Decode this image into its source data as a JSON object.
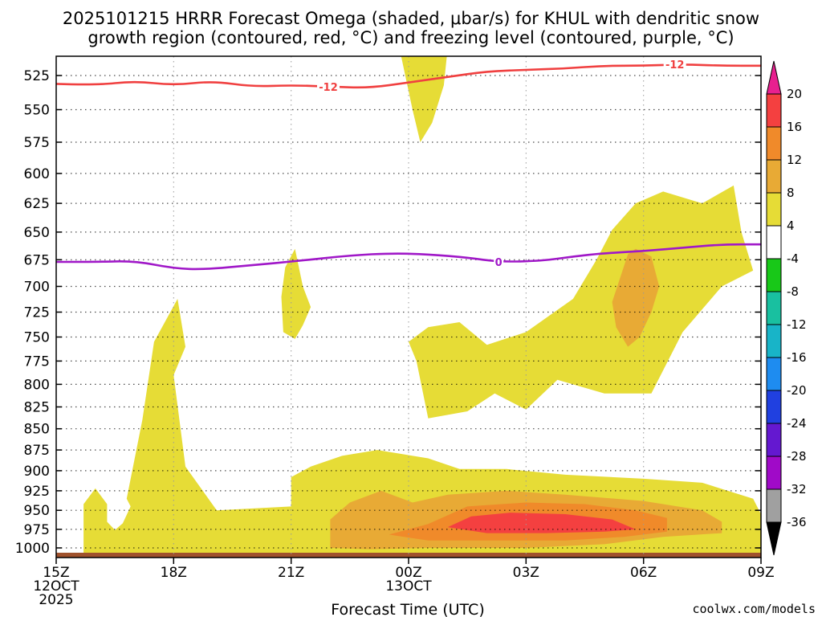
{
  "chart_data": {
    "type": "contour",
    "title_lines": [
      "2025101215 HRRR Forecast Omega (shaded, μbar/s) for KHUL with dendritic snow",
      "growth region (contoured, red, °C) and freezing level (contoured, purple, °C)"
    ],
    "xlabel": "Forecast Time (UTC)",
    "ylabel": "",
    "x_ticks": [
      {
        "hour": 0,
        "lines": [
          "15Z",
          "12OCT",
          "2025"
        ]
      },
      {
        "hour": 3,
        "lines": [
          "18Z"
        ]
      },
      {
        "hour": 6,
        "lines": [
          "21Z"
        ]
      },
      {
        "hour": 9,
        "lines": [
          "00Z",
          "13OCT"
        ]
      },
      {
        "hour": 12,
        "lines": [
          "03Z"
        ]
      },
      {
        "hour": 15,
        "lines": [
          "06Z"
        ]
      },
      {
        "hour": 18,
        "lines": [
          "09Z"
        ]
      }
    ],
    "xlim": [
      0,
      18
    ],
    "ylim": [
      1010,
      505
    ],
    "y_ticks": [
      525,
      550,
      575,
      600,
      625,
      650,
      675,
      700,
      725,
      750,
      775,
      800,
      825,
      850,
      875,
      900,
      925,
      950,
      975,
      1000
    ],
    "y_unit": "hPa",
    "grid": true,
    "colorbar": {
      "labels": [
        "20",
        "16",
        "12",
        "8",
        "4",
        "-4",
        "-8",
        "-12",
        "-16",
        "-20",
        "-24",
        "-28",
        "-32",
        "-36"
      ],
      "bins": [
        {
          "from": 20,
          "to": 24,
          "color": "#e8208f"
        },
        {
          "from": 16,
          "to": 20,
          "color": "#f44040"
        },
        {
          "from": 12,
          "to": 16,
          "color": "#f08a2a"
        },
        {
          "from": 8,
          "to": 12,
          "color": "#e8aa35"
        },
        {
          "from": 4,
          "to": 8,
          "color": "#e6dc36"
        },
        {
          "from": -4,
          "to": 4,
          "color": "#ffffff"
        },
        {
          "from": -8,
          "to": -4,
          "color": "#18c818"
        },
        {
          "from": -12,
          "to": -8,
          "color": "#19c0a0"
        },
        {
          "from": -16,
          "to": -12,
          "color": "#18b4c8"
        },
        {
          "from": -20,
          "to": -16,
          "color": "#1e8cf0"
        },
        {
          "from": -24,
          "to": -20,
          "color": "#2040e0"
        },
        {
          "from": -28,
          "to": -24,
          "color": "#6418d0"
        },
        {
          "from": -32,
          "to": -28,
          "color": "#a00ac8"
        },
        {
          "from": -36,
          "to": -32,
          "color": "#a0a0a0"
        },
        {
          "from": -40,
          "to": -36,
          "color": "#000000"
        }
      ]
    },
    "shaded_regions": [
      {
        "level": 4,
        "color": "#e6dc36",
        "points": [
          [
            0.7,
            1010
          ],
          [
            0.7,
            942
          ],
          [
            1.0,
            922
          ],
          [
            1.3,
            942
          ],
          [
            1.3,
            965
          ],
          [
            1.5,
            976
          ],
          [
            1.7,
            967
          ],
          [
            1.9,
            945
          ],
          [
            1.8,
            935
          ],
          [
            2.2,
            840
          ],
          [
            2.5,
            755
          ],
          [
            3.1,
            712
          ],
          [
            3.3,
            760
          ],
          [
            3.0,
            790
          ],
          [
            3.3,
            895
          ],
          [
            4.1,
            950
          ],
          [
            6.0,
            945
          ],
          [
            6.0,
            908
          ],
          [
            6.5,
            895
          ],
          [
            7.3,
            882
          ],
          [
            8.2,
            875
          ],
          [
            9.5,
            885
          ],
          [
            10.3,
            898
          ],
          [
            11.5,
            898
          ],
          [
            13.0,
            905
          ],
          [
            15.0,
            910
          ],
          [
            16.5,
            915
          ],
          [
            17.8,
            935
          ],
          [
            18,
            955
          ],
          [
            18,
            1010
          ]
        ]
      },
      {
        "level": 4,
        "color": "#e6dc36",
        "points": [
          [
            9.0,
            755
          ],
          [
            9.5,
            740
          ],
          [
            10.3,
            735
          ],
          [
            11.0,
            758
          ],
          [
            12.0,
            745
          ],
          [
            13.2,
            712
          ],
          [
            13.8,
            675
          ],
          [
            14.2,
            648
          ],
          [
            14.8,
            625
          ],
          [
            15.5,
            615
          ],
          [
            16.5,
            625
          ],
          [
            17.3,
            610
          ],
          [
            17.5,
            650
          ],
          [
            17.8,
            685
          ],
          [
            17.0,
            700
          ],
          [
            16.0,
            745
          ],
          [
            15.2,
            810
          ],
          [
            14.0,
            810
          ],
          [
            12.8,
            795
          ],
          [
            12.0,
            828
          ],
          [
            11.2,
            810
          ],
          [
            10.5,
            830
          ],
          [
            9.5,
            838
          ],
          [
            9.2,
            775
          ]
        ]
      },
      {
        "level": 4,
        "color": "#e6dc36",
        "points": [
          [
            8.7,
            505
          ],
          [
            8.8,
            510
          ],
          [
            9.1,
            550
          ],
          [
            9.3,
            575
          ],
          [
            9.6,
            560
          ],
          [
            9.9,
            532
          ],
          [
            10.0,
            505
          ]
        ]
      },
      {
        "level": 4,
        "color": "#e6dc36",
        "points": [
          [
            5.8,
            745
          ],
          [
            5.75,
            710
          ],
          [
            5.85,
            682
          ],
          [
            6.1,
            665
          ],
          [
            6.3,
            700
          ],
          [
            6.5,
            720
          ],
          [
            6.3,
            738
          ],
          [
            6.1,
            752
          ]
        ]
      },
      {
        "level": 8,
        "color": "#e8aa35",
        "points": [
          [
            14.6,
            670
          ],
          [
            14.8,
            665
          ],
          [
            15.2,
            672
          ],
          [
            15.4,
            700
          ],
          [
            15.2,
            725
          ],
          [
            14.9,
            750
          ],
          [
            14.6,
            760
          ],
          [
            14.3,
            740
          ],
          [
            14.2,
            715
          ]
        ]
      },
      {
        "level": 8,
        "color": "#e8aa35",
        "points": [
          [
            7.0,
            1000
          ],
          [
            7.0,
            962
          ],
          [
            7.5,
            940
          ],
          [
            8.3,
            925
          ],
          [
            9.1,
            940
          ],
          [
            10.0,
            930
          ],
          [
            11.5,
            925
          ],
          [
            13.0,
            930
          ],
          [
            15.0,
            938
          ],
          [
            16.5,
            950
          ],
          [
            17.0,
            965
          ],
          [
            17.0,
            980
          ],
          [
            15.5,
            985
          ],
          [
            14.0,
            995
          ],
          [
            12.0,
            1000
          ],
          [
            9.5,
            1000
          ],
          [
            8.0,
            1002
          ]
        ]
      },
      {
        "level": 12,
        "color": "#f08a2a",
        "points": [
          [
            8.5,
            982
          ],
          [
            9.5,
            968
          ],
          [
            10.5,
            945
          ],
          [
            12.0,
            940
          ],
          [
            13.5,
            942
          ],
          [
            14.8,
            950
          ],
          [
            15.6,
            960
          ],
          [
            15.6,
            978
          ],
          [
            14.5,
            985
          ],
          [
            13.0,
            990
          ],
          [
            11.0,
            990
          ],
          [
            9.5,
            990
          ]
        ]
      },
      {
        "level": 16,
        "color": "#f44040",
        "points": [
          [
            10.0,
            972
          ],
          [
            10.6,
            958
          ],
          [
            11.6,
            953
          ],
          [
            13.0,
            955
          ],
          [
            14.2,
            962
          ],
          [
            14.8,
            975
          ],
          [
            14.0,
            978
          ],
          [
            12.5,
            980
          ],
          [
            11.0,
            980
          ]
        ]
      }
    ],
    "contours": [
      {
        "name": "dendritic snow growth region",
        "value": -12,
        "color": "#f04040",
        "points": [
          [
            0,
            531
          ],
          [
            1,
            532
          ],
          [
            2,
            529
          ],
          [
            3,
            532
          ],
          [
            4,
            529
          ],
          [
            5,
            533
          ],
          [
            6,
            532
          ],
          [
            7,
            533
          ],
          [
            8,
            534
          ],
          [
            9,
            530
          ],
          [
            10,
            526
          ],
          [
            11,
            522
          ],
          [
            12,
            521
          ],
          [
            13,
            520
          ],
          [
            14,
            518
          ],
          [
            15,
            518
          ],
          [
            16,
            517
          ],
          [
            17,
            518
          ],
          [
            18,
            518
          ]
        ],
        "labels": [
          {
            "x": 6.95,
            "y": 533,
            "text": "-12"
          },
          {
            "x": 15.8,
            "y": 517,
            "text": "-12"
          }
        ]
      },
      {
        "name": "freezing level",
        "value": 0,
        "color": "#a018c8",
        "points": [
          [
            0,
            677
          ],
          [
            1,
            677
          ],
          [
            2,
            676
          ],
          [
            3,
            683
          ],
          [
            3.8,
            684
          ],
          [
            5,
            680
          ],
          [
            6.2,
            676
          ],
          [
            7.5,
            671
          ],
          [
            8.6,
            669
          ],
          [
            9.5,
            670
          ],
          [
            10.5,
            673
          ],
          [
            11.3,
            677
          ],
          [
            12.4,
            676
          ],
          [
            13.2,
            672
          ],
          [
            14,
            669
          ],
          [
            15,
            667
          ],
          [
            16,
            664
          ],
          [
            17,
            661
          ],
          [
            18,
            661
          ]
        ],
        "labels": [
          {
            "x": 11.3,
            "y": 677,
            "text": "0"
          }
        ]
      }
    ]
  },
  "credit": "coolwx.com/models",
  "colors": {
    "terrain": "#a0522d",
    "grid": "#999999"
  }
}
